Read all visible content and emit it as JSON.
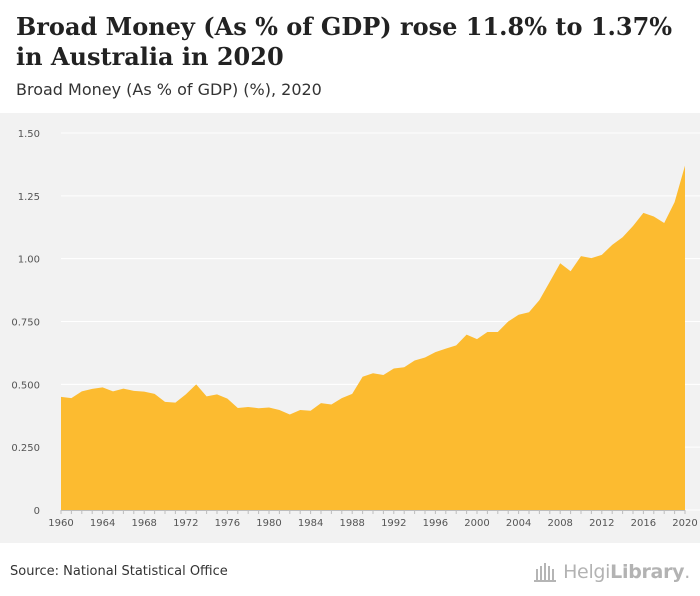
{
  "header": {
    "title": "Broad Money (As % of GDP) rose 11.8% to 1.37% in Australia in 2020",
    "subtitle": "Broad Money (As % of GDP) (%), 2020"
  },
  "footer": {
    "source": "Source: National Statistical Office",
    "logo_text": "HelgiLibrary",
    "logo_text_light": "Helgi",
    "logo_text_bold": "Library",
    "logo_suffix": "."
  },
  "colors": {
    "fill": "#fcbb30",
    "background": "#f2f2f2",
    "grid": "#ffffff"
  },
  "chart_data": {
    "type": "area",
    "title": "Broad Money (As % of GDP) rose 11.8% to 1.37% in Australia in 2020",
    "subtitle": "Broad Money (As % of GDP) (%), 2020",
    "xlabel": "",
    "ylabel": "",
    "ylim": [
      0,
      1.5
    ],
    "y_ticks": [
      "0",
      "0.250",
      "0.500",
      "0.750",
      "1.00",
      "1.25",
      "1.50"
    ],
    "y_tick_values": [
      0,
      0.25,
      0.5,
      0.75,
      1.0,
      1.25,
      1.5
    ],
    "x_ticks": [
      "1960",
      "1964",
      "1968",
      "1972",
      "1976",
      "1980",
      "1984",
      "1988",
      "1992",
      "1996",
      "2000",
      "2004",
      "2008",
      "2012",
      "2016",
      "2020"
    ],
    "grid": true,
    "series": [
      {
        "name": "",
        "x": [
          1960,
          1961,
          1962,
          1963,
          1964,
          1965,
          1966,
          1967,
          1968,
          1969,
          1970,
          1971,
          1972,
          1973,
          1974,
          1975,
          1976,
          1977,
          1978,
          1979,
          1980,
          1981,
          1982,
          1983,
          1984,
          1985,
          1986,
          1987,
          1988,
          1989,
          1990,
          1991,
          1992,
          1993,
          1994,
          1995,
          1996,
          1997,
          1998,
          1999,
          2000,
          2001,
          2002,
          2003,
          2004,
          2005,
          2006,
          2007,
          2008,
          2009,
          2010,
          2011,
          2012,
          2013,
          2014,
          2015,
          2016,
          2017,
          2018,
          2019,
          2020
        ],
        "values": [
          0.45,
          0.445,
          0.472,
          0.482,
          0.488,
          0.472,
          0.483,
          0.474,
          0.471,
          0.462,
          0.43,
          0.427,
          0.46,
          0.5,
          0.452,
          0.46,
          0.443,
          0.406,
          0.41,
          0.405,
          0.408,
          0.398,
          0.38,
          0.398,
          0.395,
          0.425,
          0.42,
          0.445,
          0.462,
          0.53,
          0.544,
          0.537,
          0.563,
          0.568,
          0.595,
          0.607,
          0.628,
          0.642,
          0.655,
          0.698,
          0.68,
          0.708,
          0.708,
          0.75,
          0.777,
          0.787,
          0.835,
          0.908,
          0.982,
          0.95,
          1.01,
          1.002,
          1.015,
          1.055,
          1.085,
          1.13,
          1.182,
          1.168,
          1.142,
          1.225,
          1.37
        ]
      }
    ]
  }
}
